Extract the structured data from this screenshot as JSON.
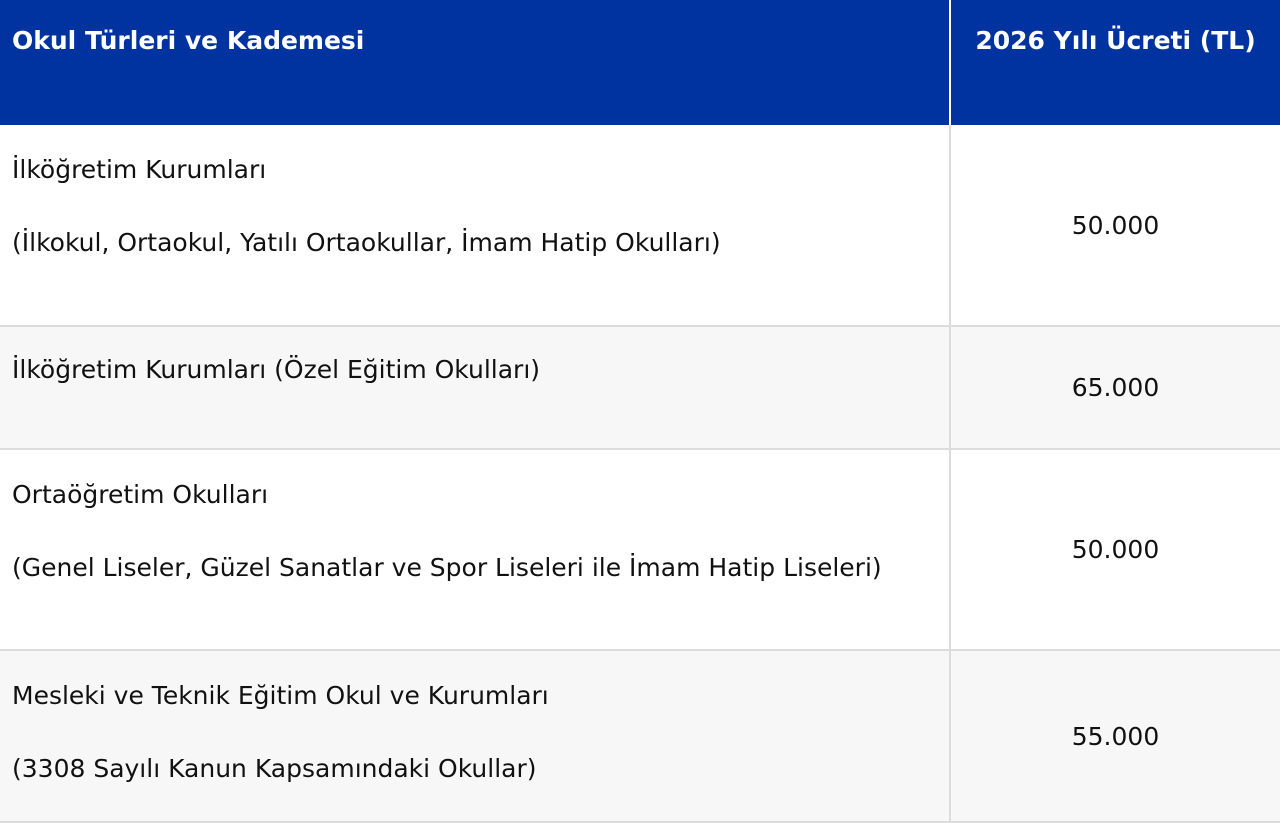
{
  "table": {
    "headers": [
      "Okul Türleri ve Kademesi",
      "2026 Yılı Ücreti (TL)"
    ],
    "rows": [
      {
        "title": "İlköğretim Kurumları",
        "detail": "(İlkokul, Ortaokul, Yatılı Ortaokullar, İmam Hatip Okulları)",
        "fee": "50.000"
      },
      {
        "title": "İlköğretim Kurumları (Özel Eğitim Okulları)",
        "detail": "",
        "fee": "65.000"
      },
      {
        "title": "Ortaöğretim Okulları",
        "detail": "(Genel Liseler, Güzel Sanatlar ve Spor Liseleri ile İmam Hatip Liseleri)",
        "fee": "50.000"
      },
      {
        "title": "Mesleki ve Teknik Eğitim Okul ve Kurumları",
        "detail": "(3308 Sayılı Kanun Kapsamındaki Okullar)",
        "fee": "55.000"
      }
    ]
  },
  "colors": {
    "header_bg": "#0033a0",
    "alt_row_bg": "#f7f7f7"
  }
}
